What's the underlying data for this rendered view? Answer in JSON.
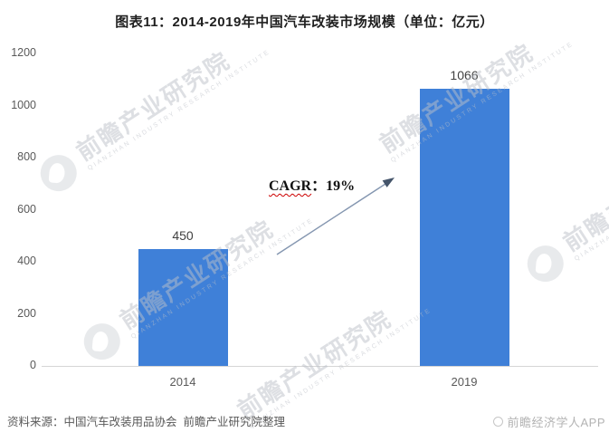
{
  "title": "图表11：2014-2019年中国汽车改装市场规模（单位：亿元）",
  "chart_data": {
    "type": "bar",
    "title": "图表11：2014-2019年中国汽车改装市场规模（单位：亿元）",
    "categories": [
      "2014",
      "2019"
    ],
    "values": [
      450,
      1066
    ],
    "unit": "亿元",
    "xlabel": "",
    "ylabel": "",
    "ylim": [
      0,
      1200
    ],
    "yticks": [
      0,
      200,
      400,
      600,
      800,
      1000,
      1200
    ],
    "grid": false,
    "legend": "none",
    "bar_color": "#3F80D8",
    "annotation": "CAGR：19%"
  },
  "annotation": {
    "prefix": "CAGR",
    "suffix": "：19%"
  },
  "watermark": {
    "text": "前瞻产业研究院",
    "subtext": "QIANZHAN INDUSTRY RESEARCH INSTITUTE"
  },
  "footer": {
    "source": "资料来源：中国汽车改装用品协会  前瞻产业研究院整理",
    "brand": "前瞻经济学人APP"
  },
  "colors": {
    "bar": "#3F80D8",
    "axis_text": "#595959",
    "arrow_line": "#8496B0",
    "arrow_head": "#44546A",
    "spellcheck_underline": "#CC0000"
  }
}
